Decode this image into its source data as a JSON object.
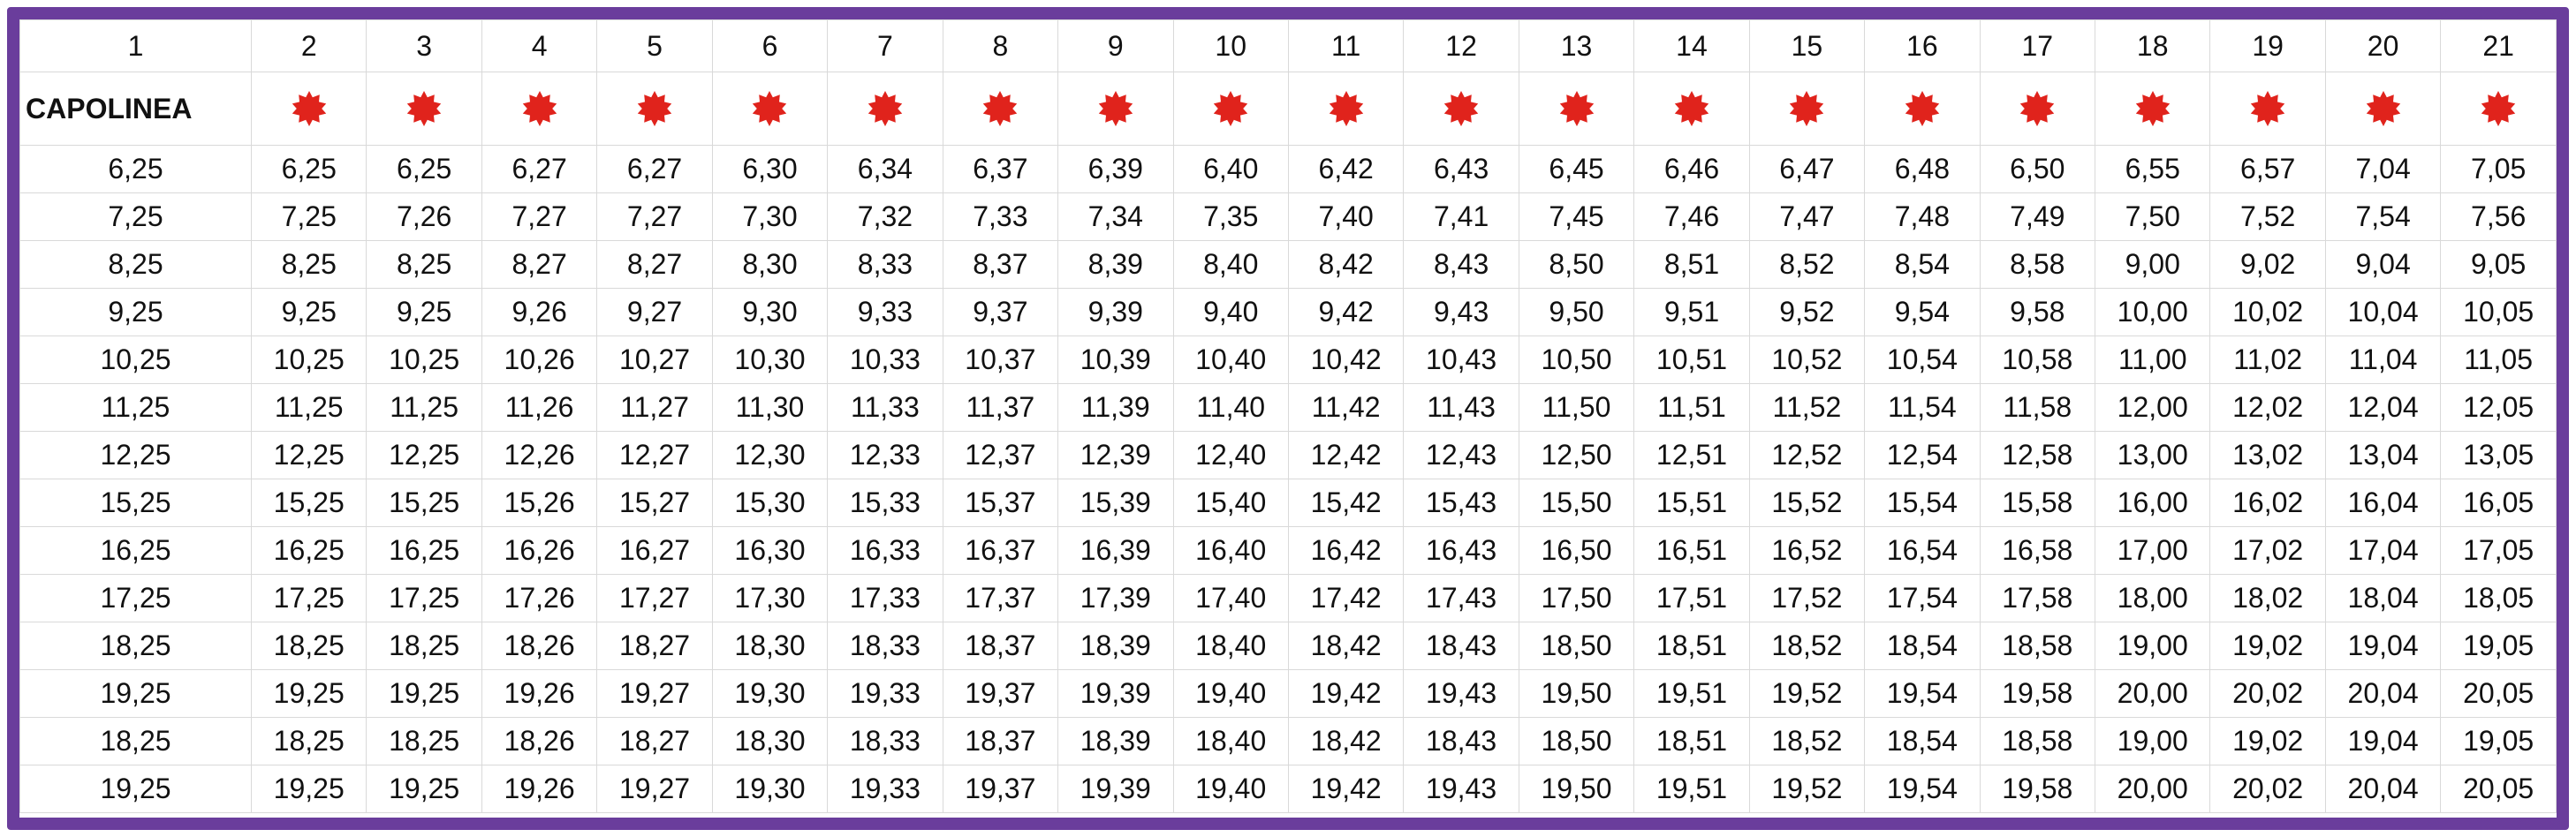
{
  "table": {
    "header": [
      "1",
      "2",
      "3",
      "4",
      "5",
      "6",
      "7",
      "8",
      "9",
      "10",
      "11",
      "12",
      "13",
      "14",
      "15",
      "16",
      "17",
      "18",
      "19",
      "20",
      "21"
    ],
    "label": "CAPOLINEA",
    "rows": [
      [
        "6,25",
        "6,25",
        "6,25",
        "6,27",
        "6,27",
        "6,30",
        "6,34",
        "6,37",
        "6,39",
        "6,40",
        "6,42",
        "6,43",
        "6,45",
        "6,46",
        "6,47",
        "6,48",
        "6,50",
        "6,55",
        "6,57",
        "7,04",
        "7,05"
      ],
      [
        "7,25",
        "7,25",
        "7,26",
        "7,27",
        "7,27",
        "7,30",
        "7,32",
        "7,33",
        "7,34",
        "7,35",
        "7,40",
        "7,41",
        "7,45",
        "7,46",
        "7,47",
        "7,48",
        "7,49",
        "7,50",
        "7,52",
        "7,54",
        "7,56"
      ],
      [
        "8,25",
        "8,25",
        "8,25",
        "8,27",
        "8,27",
        "8,30",
        "8,33",
        "8,37",
        "8,39",
        "8,40",
        "8,42",
        "8,43",
        "8,50",
        "8,51",
        "8,52",
        "8,54",
        "8,58",
        "9,00",
        "9,02",
        "9,04",
        "9,05"
      ],
      [
        "9,25",
        "9,25",
        "9,25",
        "9,26",
        "9,27",
        "9,30",
        "9,33",
        "9,37",
        "9,39",
        "9,40",
        "9,42",
        "9,43",
        "9,50",
        "9,51",
        "9,52",
        "9,54",
        "9,58",
        "10,00",
        "10,02",
        "10,04",
        "10,05"
      ],
      [
        "10,25",
        "10,25",
        "10,25",
        "10,26",
        "10,27",
        "10,30",
        "10,33",
        "10,37",
        "10,39",
        "10,40",
        "10,42",
        "10,43",
        "10,50",
        "10,51",
        "10,52",
        "10,54",
        "10,58",
        "11,00",
        "11,02",
        "11,04",
        "11,05"
      ],
      [
        "11,25",
        "11,25",
        "11,25",
        "11,26",
        "11,27",
        "11,30",
        "11,33",
        "11,37",
        "11,39",
        "11,40",
        "11,42",
        "11,43",
        "11,50",
        "11,51",
        "11,52",
        "11,54",
        "11,58",
        "12,00",
        "12,02",
        "12,04",
        "12,05"
      ],
      [
        "12,25",
        "12,25",
        "12,25",
        "12,26",
        "12,27",
        "12,30",
        "12,33",
        "12,37",
        "12,39",
        "12,40",
        "12,42",
        "12,43",
        "12,50",
        "12,51",
        "12,52",
        "12,54",
        "12,58",
        "13,00",
        "13,02",
        "13,04",
        "13,05"
      ],
      [
        "15,25",
        "15,25",
        "15,25",
        "15,26",
        "15,27",
        "15,30",
        "15,33",
        "15,37",
        "15,39",
        "15,40",
        "15,42",
        "15,43",
        "15,50",
        "15,51",
        "15,52",
        "15,54",
        "15,58",
        "16,00",
        "16,02",
        "16,04",
        "16,05"
      ],
      [
        "16,25",
        "16,25",
        "16,25",
        "16,26",
        "16,27",
        "16,30",
        "16,33",
        "16,37",
        "16,39",
        "16,40",
        "16,42",
        "16,43",
        "16,50",
        "16,51",
        "16,52",
        "16,54",
        "16,58",
        "17,00",
        "17,02",
        "17,04",
        "17,05"
      ],
      [
        "17,25",
        "17,25",
        "17,25",
        "17,26",
        "17,27",
        "17,30",
        "17,33",
        "17,37",
        "17,39",
        "17,40",
        "17,42",
        "17,43",
        "17,50",
        "17,51",
        "17,52",
        "17,54",
        "17,58",
        "18,00",
        "18,02",
        "18,04",
        "18,05"
      ],
      [
        "18,25",
        "18,25",
        "18,25",
        "18,26",
        "18,27",
        "18,30",
        "18,33",
        "18,37",
        "18,39",
        "18,40",
        "18,42",
        "18,43",
        "18,50",
        "18,51",
        "18,52",
        "18,54",
        "18,58",
        "19,00",
        "19,02",
        "19,04",
        "19,05"
      ],
      [
        "19,25",
        "19,25",
        "19,25",
        "19,26",
        "19,27",
        "19,30",
        "19,33",
        "19,37",
        "19,39",
        "19,40",
        "19,42",
        "19,43",
        "19,50",
        "19,51",
        "19,52",
        "19,54",
        "19,58",
        "20,00",
        "20,02",
        "20,04",
        "20,05"
      ],
      [
        "18,25",
        "18,25",
        "18,25",
        "18,26",
        "18,27",
        "18,30",
        "18,33",
        "18,37",
        "18,39",
        "18,40",
        "18,42",
        "18,43",
        "18,50",
        "18,51",
        "18,52",
        "18,54",
        "18,58",
        "19,00",
        "19,02",
        "19,04",
        "19,05"
      ],
      [
        "19,25",
        "19,25",
        "19,25",
        "19,26",
        "19,27",
        "19,30",
        "19,33",
        "19,37",
        "19,39",
        "19,40",
        "19,42",
        "19,43",
        "19,50",
        "19,51",
        "19,52",
        "19,54",
        "19,58",
        "20,00",
        "20,02",
        "20,04",
        "20,05"
      ]
    ]
  }
}
